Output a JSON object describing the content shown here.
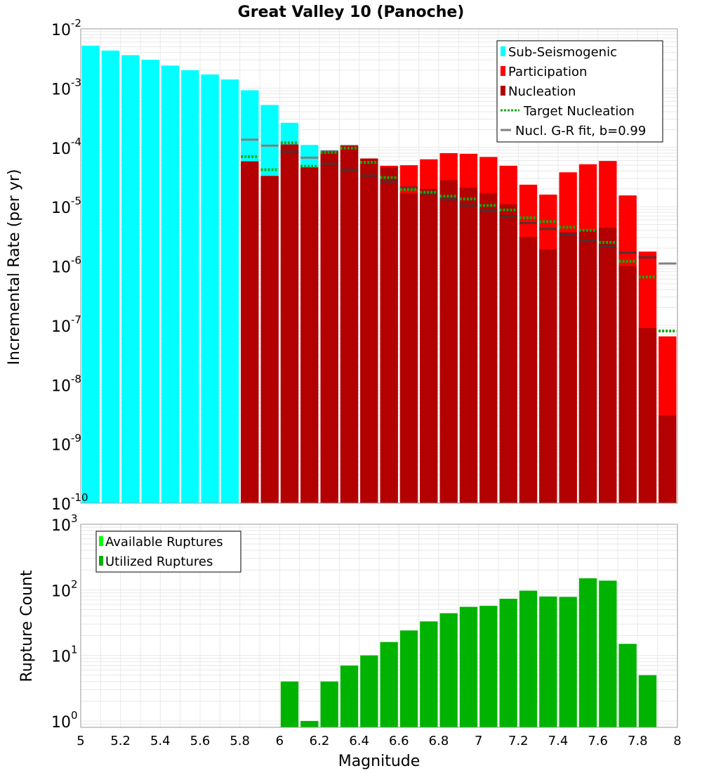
{
  "title": "Great Valley 10 (Panoche)",
  "colors": {
    "sub_seismogenic": "#00ffff",
    "participation": "#ff0000",
    "nucleation": "#b30000",
    "target_nucleation": "#11aa11",
    "gr_fit": "#808080",
    "available": "#00ff00",
    "utilized": "#00b300",
    "grid": "#e8e8e8"
  },
  "chart_data": [
    {
      "type": "bar",
      "scale": "log",
      "ylabel": "Incremental Rate (per yr)",
      "xlim": [
        5,
        8
      ],
      "ylim": [
        1e-10,
        0.01
      ],
      "bin_width": 0.1,
      "grid": true,
      "legend_position": "top-right",
      "legend": [
        "Sub-Seismogenic",
        "Participation",
        "Nucleation",
        "Target Nucleation",
        "Nucl. G-R fit, b=0.99"
      ],
      "ytick_exponents": [
        -10,
        -9,
        -8,
        -7,
        -6,
        -5,
        -4,
        -3,
        -2
      ],
      "sub_seismogenic": {
        "name": "Sub-Seismogenic",
        "x": [
          5.05,
          5.15,
          5.25,
          5.35,
          5.45,
          5.55,
          5.65,
          5.75,
          5.85,
          5.95,
          6.05,
          6.15,
          6.25,
          6.35
        ],
        "values": [
          0.0052,
          0.0043,
          0.0036,
          0.003,
          0.0024,
          0.002,
          0.0017,
          0.0014,
          0.00092,
          0.00052,
          0.00026,
          0.00011,
          9e-05,
          0.00011
        ]
      },
      "participation": {
        "name": "Participation",
        "x": [
          5.85,
          5.95,
          6.05,
          6.15,
          6.25,
          6.35,
          6.45,
          6.55,
          6.65,
          6.75,
          6.85,
          6.95,
          7.05,
          7.15,
          7.25,
          7.35,
          7.45,
          7.55,
          7.65,
          7.75,
          7.85,
          7.95
        ],
        "values": [
          5.8e-05,
          3.3e-05,
          0.000112,
          4.6e-05,
          8.8e-05,
          0.000109,
          6.5e-05,
          4.9e-05,
          5e-05,
          6.3e-05,
          8e-05,
          7.8e-05,
          6.9e-05,
          4.9e-05,
          2.35e-05,
          1.6e-05,
          3.8e-05,
          5.2e-05,
          5.9e-05,
          1.55e-05,
          1.75e-06,
          6.5e-08
        ]
      },
      "nucleation": {
        "name": "Nucleation",
        "x": [
          5.85,
          5.95,
          6.05,
          6.15,
          6.25,
          6.35,
          6.45,
          6.55,
          6.65,
          6.75,
          6.85,
          6.95,
          7.05,
          7.15,
          7.25,
          7.35,
          7.45,
          7.55,
          7.65,
          7.75,
          7.85,
          7.95
        ],
        "values": [
          5.8e-05,
          3.3e-05,
          0.000112,
          4.6e-05,
          8.5e-05,
          0.000105,
          6.5e-05,
          4.6e-05,
          1.7e-05,
          2e-05,
          2.8e-05,
          2.1e-05,
          1.7e-05,
          1.1e-05,
          3.1e-06,
          1.9e-06,
          3.7e-06,
          4e-06,
          4.4e-06,
          1e-06,
          9e-08,
          3e-09
        ]
      },
      "target_nucleation": {
        "name": "Target Nucleation",
        "x": [
          5.85,
          5.95,
          6.05,
          6.15,
          6.25,
          6.35,
          6.45,
          6.55,
          6.65,
          6.75,
          6.85,
          6.95,
          7.05,
          7.15,
          7.25,
          7.35,
          7.45,
          7.55,
          7.65,
          7.75,
          7.85,
          7.95
        ],
        "values": [
          7e-05,
          4.2e-05,
          0.00012,
          4.8e-05,
          8.2e-05,
          9.7e-05,
          5.6e-05,
          3.1e-05,
          1.95e-05,
          1.75e-05,
          1.5e-05,
          1.35e-05,
          1.05e-05,
          8.8e-06,
          6.5e-06,
          5.6e-06,
          4.5e-06,
          4e-06,
          2.5e-06,
          1.2e-06,
          6.5e-07,
          8e-08
        ]
      },
      "gr_fit": {
        "name": "Nucl. G-R fit, b=0.99",
        "x": [
          5.85,
          5.95,
          6.05,
          6.15,
          6.25,
          6.35,
          6.45,
          6.55,
          6.65,
          6.75,
          6.85,
          6.95,
          7.05,
          7.15,
          7.25,
          7.35,
          7.45,
          7.55,
          7.65,
          7.75,
          7.85,
          7.95
        ],
        "values": [
          0.000135,
          0.000107,
          8.5e-05,
          6.7e-05,
          5.3e-05,
          4.2e-05,
          3.35e-05,
          2.65e-05,
          2.1e-05,
          1.67e-05,
          1.33e-05,
          1.05e-05,
          8.4e-06,
          6.7e-06,
          5.3e-06,
          4.2e-06,
          3.35e-06,
          2.65e-06,
          2.1e-06,
          1.67e-06,
          1.4e-06,
          1.1e-06
        ]
      }
    },
    {
      "type": "bar",
      "scale": "log",
      "xlabel": "Magnitude",
      "ylabel": "Rupture Count",
      "xlim": [
        5,
        8
      ],
      "ylim": [
        0.8,
        1000
      ],
      "bin_width": 0.1,
      "grid": true,
      "legend_position": "top-left",
      "legend": [
        "Available Ruptures",
        "Utilized Ruptures"
      ],
      "ytick_exponents": [
        0,
        1,
        2,
        3
      ],
      "xticks": [
        "5",
        "5.2",
        "5.4",
        "5.6",
        "5.8",
        "6",
        "6.2",
        "6.4",
        "6.6",
        "6.8",
        "7",
        "7.2",
        "7.4",
        "7.6",
        "7.8",
        "8"
      ],
      "series": [
        {
          "name": "Utilized Ruptures",
          "x": [
            6.05,
            6.15,
            6.25,
            6.35,
            6.45,
            6.55,
            6.65,
            6.75,
            6.85,
            6.95,
            7.05,
            7.15,
            7.25,
            7.35,
            7.45,
            7.55,
            7.65,
            7.75,
            7.85
          ],
          "values": [
            4,
            1,
            4,
            7,
            10,
            16,
            24,
            33,
            44,
            55,
            57,
            73,
            97,
            79,
            78,
            150,
            138,
            15,
            5
          ]
        }
      ]
    }
  ]
}
